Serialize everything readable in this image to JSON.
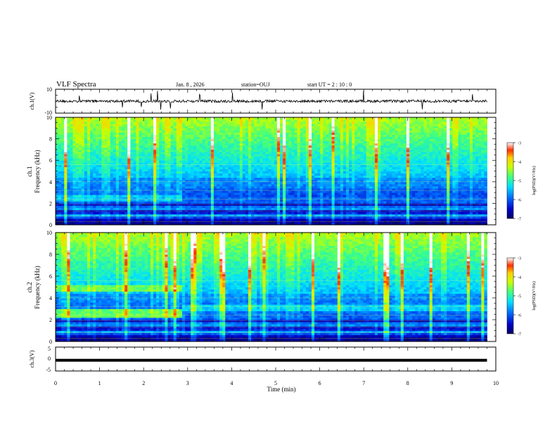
{
  "header": {
    "title": "VLF Spectra",
    "date": "Jan. 8 , 2026",
    "station": "station=OUJ",
    "start": "start UT = 2 : 10 : 0"
  },
  "chart_data": [
    {
      "type": "line",
      "name": "ch1-waveform",
      "ylabel": "ch.1(V)",
      "ylim": [
        -10,
        10
      ],
      "yticks": [
        "10",
        "-10"
      ],
      "xlim": [
        0,
        10
      ]
    },
    {
      "type": "heatmap",
      "name": "ch1-spectrogram",
      "ylabel_line1": "ch.1",
      "ylabel_line2": "Frequency (kHz)",
      "ylim": [
        0,
        10
      ],
      "yticks": [
        "0",
        "2",
        "4",
        "6",
        "8",
        "10"
      ],
      "xlim": [
        0,
        10
      ],
      "data_end_min": 9.8,
      "colorbar": {
        "label": "log(PSD)(V²/Hz)",
        "range": [
          -7,
          -3
        ],
        "ticks": [
          "-3",
          "-4",
          "-5",
          "-6",
          "-7"
        ]
      }
    },
    {
      "type": "heatmap",
      "name": "ch2-spectrogram",
      "ylabel_line1": "ch.2",
      "ylabel_line2": "Frequency (kHz)",
      "ylim": [
        0,
        10
      ],
      "yticks": [
        "0",
        "2",
        "4",
        "6",
        "8",
        "10"
      ],
      "xlim": [
        0,
        10
      ],
      "data_end_min": 9.8,
      "colorbar": {
        "label": "log(PSD)(V²/Hz)",
        "range": [
          -7,
          -3
        ],
        "ticks": [
          "-3",
          "-4",
          "-5",
          "-6",
          "-7"
        ]
      }
    },
    {
      "type": "line",
      "name": "ch3-waveform",
      "ylabel": "ch.3(V)",
      "ylim": [
        -5,
        5
      ],
      "yticks": [
        "5",
        "0",
        "-5"
      ],
      "xlim": [
        0,
        10
      ],
      "level_V": -0.5
    }
  ],
  "xaxis": {
    "label": "Time (min)",
    "ticks": [
      "0",
      "1",
      "2",
      "3",
      "4",
      "5",
      "6",
      "7",
      "8",
      "9",
      "10"
    ]
  }
}
